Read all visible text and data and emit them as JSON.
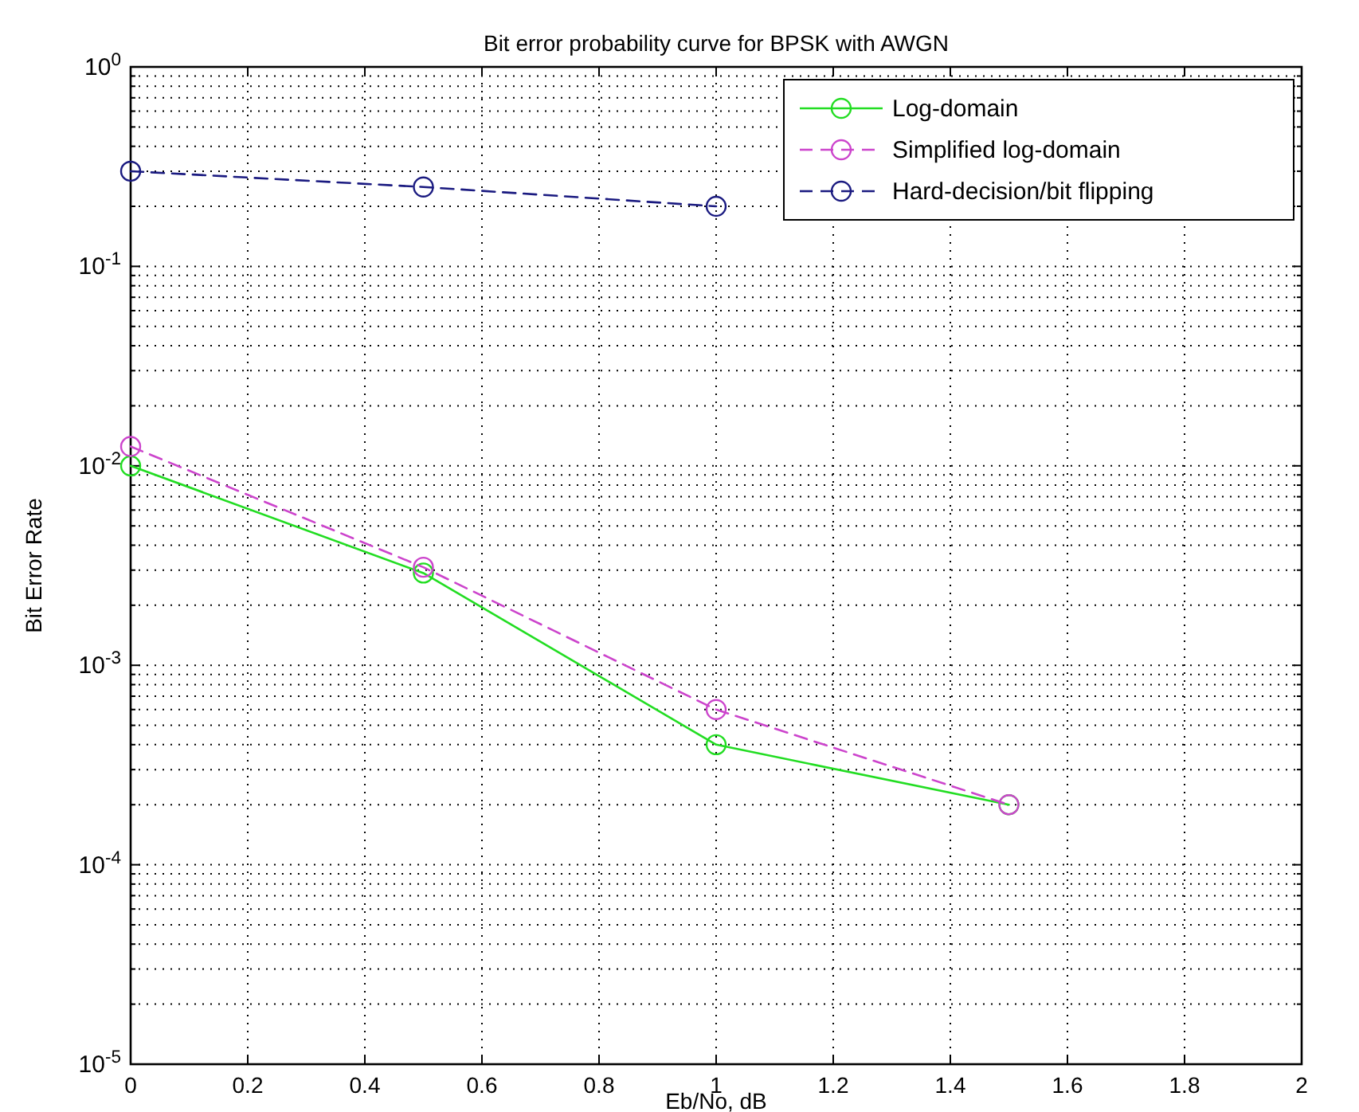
{
  "chart_data": {
    "type": "line",
    "title": "Bit error probability curve for BPSK with AWGN",
    "xlabel": "Eb/No, dB",
    "ylabel": "Bit Error Rate",
    "x": [
      0,
      0.5,
      1,
      1.5
    ],
    "series": [
      {
        "name": "Log-domain",
        "color": "#22dd22",
        "values": [
          0.01,
          0.0029,
          0.0004,
          0.0002
        ],
        "line_style": "solid"
      },
      {
        "name": "Simplified log-domain",
        "color": "#cc44cc",
        "values": [
          0.0125,
          0.0031,
          0.0006,
          0.0002
        ],
        "line_style": "dashed"
      },
      {
        "name": "Hard-decision/bit flipping",
        "color": "#1a1a80",
        "values": [
          0.3,
          0.25,
          0.2,
          null
        ],
        "line_style": "dashed"
      }
    ],
    "log": "y",
    "xlim": [
      0,
      2
    ],
    "ylim": [
      1e-05,
      1
    ],
    "xticks": [
      0,
      0.2,
      0.4,
      0.6,
      0.8,
      1,
      1.2,
      1.4,
      1.6,
      1.8,
      2
    ],
    "yticks": [
      {
        "value": 1e-05,
        "label": "10$^{-5}$"
      },
      {
        "value": 0.0001,
        "label": "10$^{-4}$"
      },
      {
        "value": 0.001,
        "label": "10$^{-3}$"
      },
      {
        "value": 0.01,
        "label": "10$^{-2}$"
      },
      {
        "value": 0.1,
        "label": "10$^{-1}$"
      },
      {
        "value": 1,
        "label": "10$^{0}$"
      }
    ],
    "grid": true,
    "legend": "top right",
    "marker": "circle"
  }
}
